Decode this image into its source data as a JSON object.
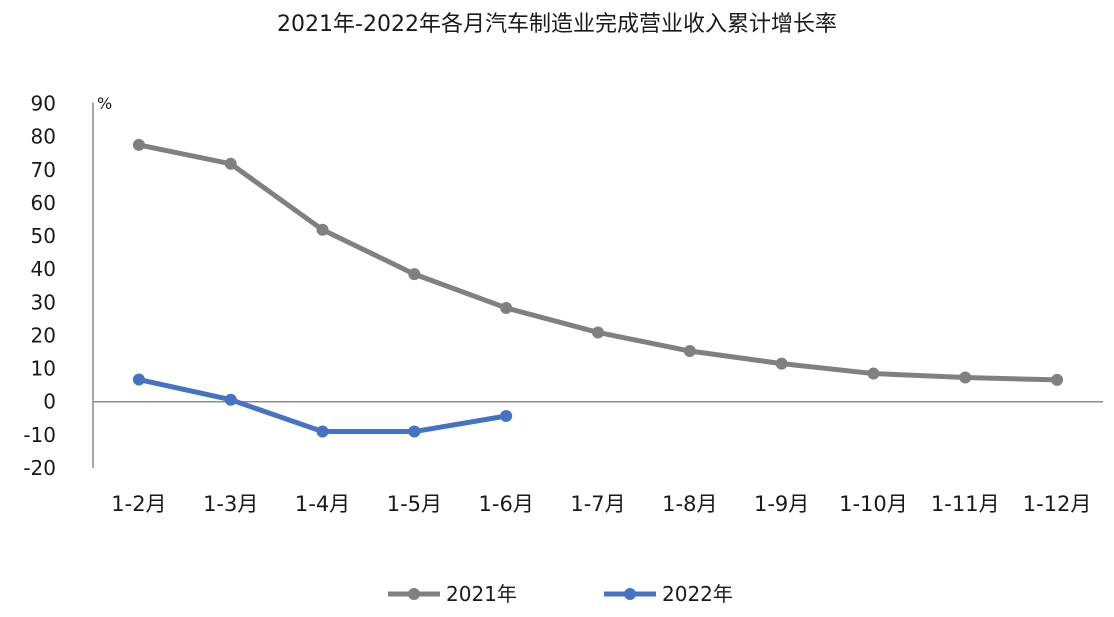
{
  "chart_data": {
    "type": "line",
    "title": "2021年-2022年各月汽车制造业完成营业收入累计增长率",
    "ylabel": "%",
    "xlabel": "",
    "ylim": [
      -20,
      90
    ],
    "yticks": [
      90,
      80,
      70,
      60,
      50,
      40,
      30,
      20,
      10,
      0,
      -10,
      -20
    ],
    "categories": [
      "1-2月",
      "1-3月",
      "1-4月",
      "1-5月",
      "1-6月",
      "1-7月",
      "1-8月",
      "1-9月",
      "1-10月",
      "1-11月",
      "1-12月"
    ],
    "series": [
      {
        "name": "2021年",
        "color": "#808080",
        "values": [
          77.5,
          71.8,
          51.9,
          38.5,
          28.3,
          20.9,
          15.3,
          11.5,
          8.5,
          7.3,
          6.6
        ]
      },
      {
        "name": "2022年",
        "color": "#4472C4",
        "values": [
          6.7,
          0.6,
          -9.0,
          -9.0,
          -4.3,
          null,
          null,
          null,
          null,
          null,
          null
        ]
      }
    ],
    "grid": false,
    "legend": "bottom"
  }
}
